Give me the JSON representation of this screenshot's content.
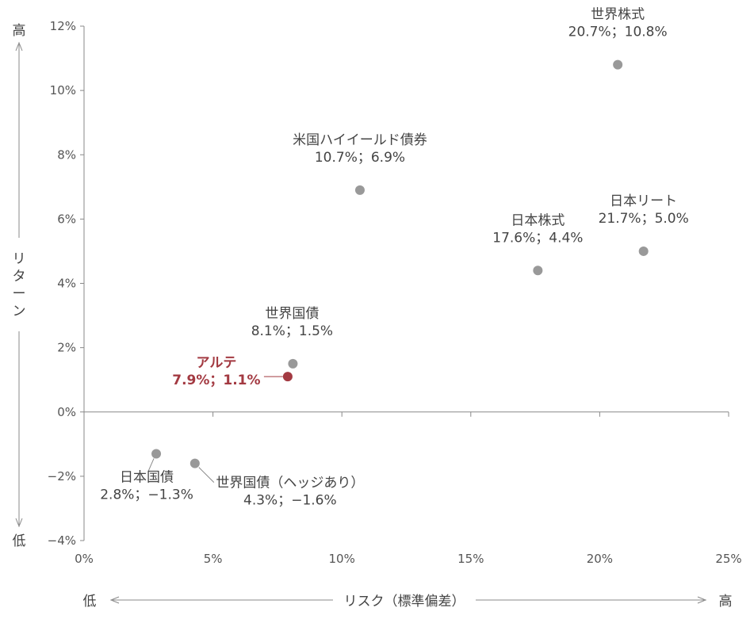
{
  "chart_data": {
    "type": "scatter",
    "x_axis": {
      "range": [
        0,
        25
      ],
      "ticks": [
        0,
        5,
        10,
        15,
        20,
        25
      ],
      "tick_labels": [
        "0%",
        "5%",
        "10%",
        "15%",
        "20%",
        "25%"
      ],
      "label": "リスク（標準偏差）",
      "low_label": "低",
      "high_label": "高"
    },
    "y_axis": {
      "range": [
        -4,
        12
      ],
      "ticks": [
        -4,
        -2,
        0,
        2,
        4,
        6,
        8,
        10,
        12
      ],
      "tick_labels": [
        "−4%",
        "−2%",
        "0%",
        "2%",
        "4%",
        "6%",
        "8%",
        "10%",
        "12%"
      ],
      "label": "リターン",
      "low_label": "低",
      "high_label": "高"
    },
    "grid": false,
    "points": [
      {
        "name": "世界株式",
        "value_label": "20.7%；10.8%",
        "x": 20.7,
        "y": 10.8,
        "highlight": false
      },
      {
        "name": "米国ハイイールド債券",
        "value_label": "10.7%；6.9%",
        "x": 10.7,
        "y": 6.9,
        "highlight": false
      },
      {
        "name": "日本株式",
        "value_label": "17.6%；4.4%",
        "x": 17.6,
        "y": 4.4,
        "highlight": false
      },
      {
        "name": "日本リート",
        "value_label": "21.7%；5.0%",
        "x": 21.7,
        "y": 5.0,
        "highlight": false
      },
      {
        "name": "世界国債",
        "value_label": "8.1%；1.5%",
        "x": 8.1,
        "y": 1.5,
        "highlight": false
      },
      {
        "name": "アルテ",
        "value_label": "7.9%；1.1%",
        "x": 7.9,
        "y": 1.1,
        "highlight": true
      },
      {
        "name": "日本国債",
        "value_label": "2.8%；−1.3%",
        "x": 2.8,
        "y": -1.3,
        "highlight": false
      },
      {
        "name": "世界国債（ヘッジあり）",
        "value_label": "4.3%；−1.6%",
        "x": 4.3,
        "y": -1.6,
        "highlight": false
      }
    ],
    "colors": {
      "point": "#999999",
      "highlight": "#a33a42",
      "axis": "#888888"
    }
  }
}
